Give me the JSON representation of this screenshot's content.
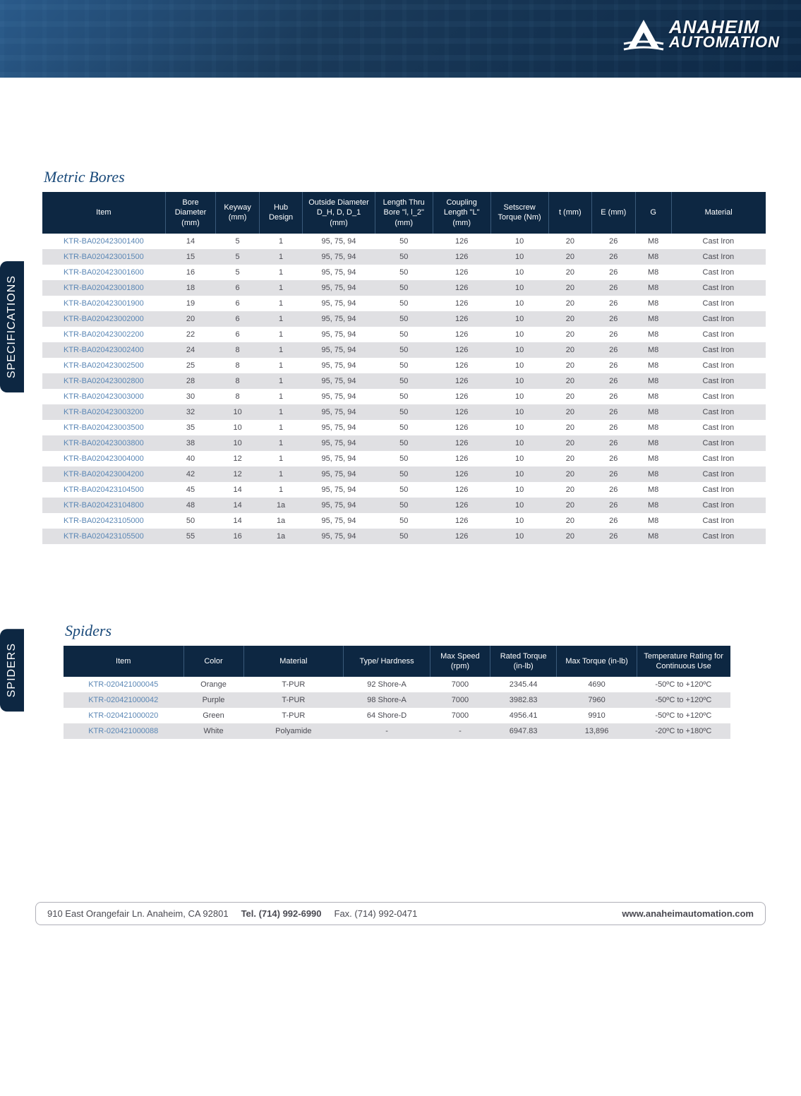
{
  "logo": {
    "line1": "ANAHEIM",
    "line2": "AUTOMATION"
  },
  "tabs": {
    "specs": "SPECIFICATIONS",
    "spiders": "SPIDERS"
  },
  "metric_bores": {
    "title": "Metric Bores",
    "header_bg": "#0d2742",
    "header_fg": "#ffffff",
    "row_odd_bg": "#ffffff",
    "row_even_bg": "#e0e0e3",
    "item_color": "#5b87b5",
    "cell_color": "#4a4a52",
    "columns": [
      "Item",
      "Bore Diameter (mm)",
      "Keyway (mm)",
      "Hub Design",
      "Outside Diameter D_H, D, D_1 (mm)",
      "Length Thru Bore \"l, l_2\" (mm)",
      "Coupling Length \"L\" (mm)",
      "Setscrew Torque (Nm)",
      "t (mm)",
      "E (mm)",
      "G",
      "Material"
    ],
    "rows": [
      [
        "KTR-BA020423001400",
        "14",
        "5",
        "1",
        "95, 75, 94",
        "50",
        "126",
        "10",
        "20",
        "26",
        "M8",
        "Cast Iron"
      ],
      [
        "KTR-BA020423001500",
        "15",
        "5",
        "1",
        "95, 75, 94",
        "50",
        "126",
        "10",
        "20",
        "26",
        "M8",
        "Cast Iron"
      ],
      [
        "KTR-BA020423001600",
        "16",
        "5",
        "1",
        "95, 75, 94",
        "50",
        "126",
        "10",
        "20",
        "26",
        "M8",
        "Cast Iron"
      ],
      [
        "KTR-BA020423001800",
        "18",
        "6",
        "1",
        "95, 75, 94",
        "50",
        "126",
        "10",
        "20",
        "26",
        "M8",
        "Cast Iron"
      ],
      [
        "KTR-BA020423001900",
        "19",
        "6",
        "1",
        "95, 75, 94",
        "50",
        "126",
        "10",
        "20",
        "26",
        "M8",
        "Cast Iron"
      ],
      [
        "KTR-BA020423002000",
        "20",
        "6",
        "1",
        "95, 75, 94",
        "50",
        "126",
        "10",
        "20",
        "26",
        "M8",
        "Cast Iron"
      ],
      [
        "KTR-BA020423002200",
        "22",
        "6",
        "1",
        "95, 75, 94",
        "50",
        "126",
        "10",
        "20",
        "26",
        "M8",
        "Cast Iron"
      ],
      [
        "KTR-BA020423002400",
        "24",
        "8",
        "1",
        "95, 75, 94",
        "50",
        "126",
        "10",
        "20",
        "26",
        "M8",
        "Cast Iron"
      ],
      [
        "KTR-BA020423002500",
        "25",
        "8",
        "1",
        "95, 75, 94",
        "50",
        "126",
        "10",
        "20",
        "26",
        "M8",
        "Cast Iron"
      ],
      [
        "KTR-BA020423002800",
        "28",
        "8",
        "1",
        "95, 75, 94",
        "50",
        "126",
        "10",
        "20",
        "26",
        "M8",
        "Cast Iron"
      ],
      [
        "KTR-BA020423003000",
        "30",
        "8",
        "1",
        "95, 75, 94",
        "50",
        "126",
        "10",
        "20",
        "26",
        "M8",
        "Cast Iron"
      ],
      [
        "KTR-BA020423003200",
        "32",
        "10",
        "1",
        "95, 75, 94",
        "50",
        "126",
        "10",
        "20",
        "26",
        "M8",
        "Cast Iron"
      ],
      [
        "KTR-BA020423003500",
        "35",
        "10",
        "1",
        "95, 75, 94",
        "50",
        "126",
        "10",
        "20",
        "26",
        "M8",
        "Cast Iron"
      ],
      [
        "KTR-BA020423003800",
        "38",
        "10",
        "1",
        "95, 75, 94",
        "50",
        "126",
        "10",
        "20",
        "26",
        "M8",
        "Cast Iron"
      ],
      [
        "KTR-BA020423004000",
        "40",
        "12",
        "1",
        "95, 75, 94",
        "50",
        "126",
        "10",
        "20",
        "26",
        "M8",
        "Cast Iron"
      ],
      [
        "KTR-BA020423004200",
        "42",
        "12",
        "1",
        "95, 75, 94",
        "50",
        "126",
        "10",
        "20",
        "26",
        "M8",
        "Cast Iron"
      ],
      [
        "KTR-BA020423104500",
        "45",
        "14",
        "1",
        "95, 75, 94",
        "50",
        "126",
        "10",
        "20",
        "26",
        "M8",
        "Cast Iron"
      ],
      [
        "KTR-BA020423104800",
        "48",
        "14",
        "1a",
        "95, 75, 94",
        "50",
        "126",
        "10",
        "20",
        "26",
        "M8",
        "Cast Iron"
      ],
      [
        "KTR-BA020423105000",
        "50",
        "14",
        "1a",
        "95, 75, 94",
        "50",
        "126",
        "10",
        "20",
        "26",
        "M8",
        "Cast Iron"
      ],
      [
        "KTR-BA020423105500",
        "55",
        "16",
        "1a",
        "95, 75, 94",
        "50",
        "126",
        "10",
        "20",
        "26",
        "M8",
        "Cast Iron"
      ]
    ],
    "col_widths_pct": [
      17,
      7,
      6,
      6,
      10,
      8,
      8,
      8,
      6,
      6,
      5,
      13
    ]
  },
  "spiders": {
    "title": "Spiders",
    "header_bg": "#0d2742",
    "header_fg": "#ffffff",
    "row_odd_bg": "#ffffff",
    "row_even_bg": "#e0e0e3",
    "item_color": "#5b87b5",
    "cell_color": "#4a4a52",
    "columns": [
      "Item",
      "Color",
      "Material",
      "Type/ Hardness",
      "Max Speed (rpm)",
      "Rated Torque (in-lb)",
      "Max Torque (in-lb)",
      "Temperature Rating for Continuous Use"
    ],
    "rows": [
      [
        "KTR-020421000045",
        "Orange",
        "T-PUR",
        "92 Shore-A",
        "7000",
        "2345.44",
        "4690",
        "-50ºC to +120ºC"
      ],
      [
        "KTR-020421000042",
        "Purple",
        "T-PUR",
        "98 Shore-A",
        "7000",
        "3982.83",
        "7960",
        "-50ºC to +120ºC"
      ],
      [
        "KTR-020421000020",
        "Green",
        "T-PUR",
        "64 Shore-D",
        "7000",
        "4956.41",
        "9910",
        "-50ºC to +120ºC"
      ],
      [
        "KTR-020421000088",
        "White",
        "Polyamide",
        "-",
        "-",
        "6947.83",
        "13,896",
        "-20ºC to +180ºC"
      ]
    ],
    "col_widths_pct": [
      18,
      9,
      15,
      13,
      9,
      10,
      12,
      14
    ]
  },
  "footer": {
    "address": "910 East Orangefair Ln.  Anaheim, CA 92801",
    "tel_label": "Tel. (714) 992-6990",
    "fax": "Fax. (714) 992-0471",
    "web": "www.anaheimautomation.com"
  }
}
